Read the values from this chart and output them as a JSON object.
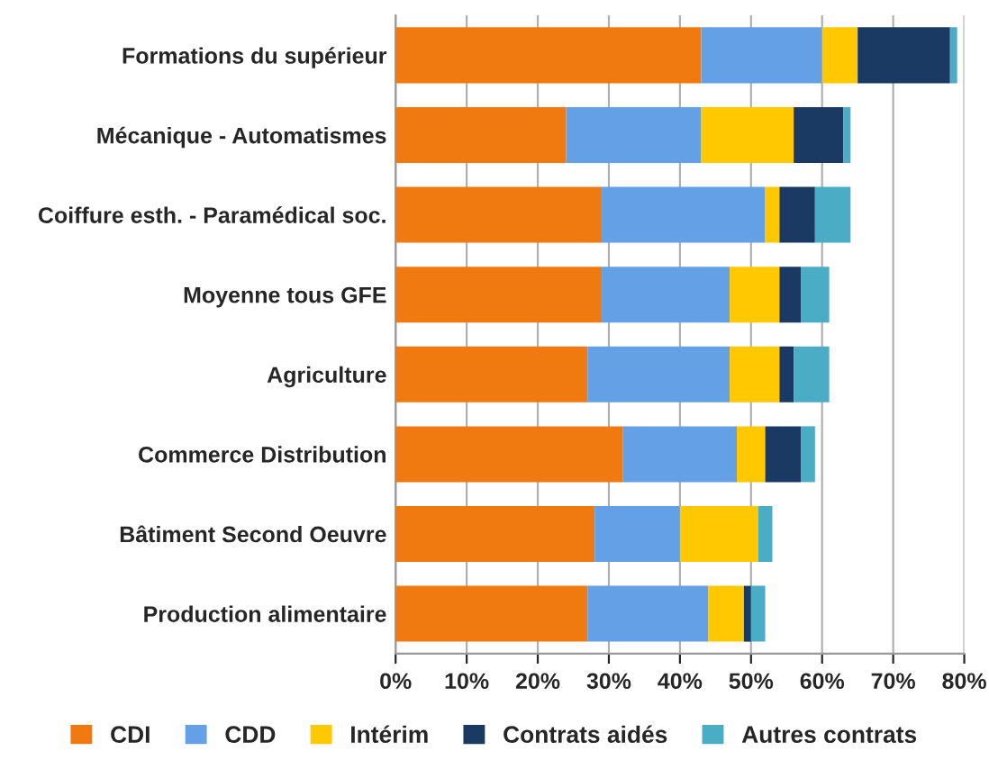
{
  "chart_data": {
    "type": "bar",
    "orientation": "horizontal",
    "stacked": true,
    "categories": [
      "Formations du supérieur",
      "Mécanique - Automatismes",
      "Coiffure esth. - Paramédical soc.",
      "Moyenne tous GFE",
      "Agriculture",
      "Commerce Distribution",
      "Bâtiment Second Oeuvre",
      "Production alimentaire"
    ],
    "series": [
      {
        "name": "CDI",
        "color": "#f07a10",
        "values": [
          43,
          24,
          29,
          29,
          27,
          32,
          28,
          27
        ]
      },
      {
        "name": "CDD",
        "color": "#64a0e6",
        "values": [
          17,
          19,
          23,
          18,
          20,
          16,
          12,
          17
        ]
      },
      {
        "name": "Intérim",
        "color": "#ffc800",
        "values": [
          5,
          13,
          2,
          7,
          7,
          4,
          11,
          5
        ]
      },
      {
        "name": "Contrats aidés",
        "color": "#1a3a64",
        "values": [
          13,
          7,
          5,
          3,
          2,
          5,
          null,
          1
        ]
      },
      {
        "name": "Autres contrats",
        "color": "#4bacc6",
        "values": [
          1,
          1,
          5,
          4,
          5,
          2,
          2,
          2
        ]
      }
    ],
    "xlim": [
      0,
      80
    ],
    "xticks": [
      {
        "value": 0,
        "label": "0%"
      },
      {
        "value": 10,
        "label": "10%"
      },
      {
        "value": 20,
        "label": "20%"
      },
      {
        "value": 30,
        "label": "30%"
      },
      {
        "value": 40,
        "label": "40%"
      },
      {
        "value": 50,
        "label": "50%"
      },
      {
        "value": 60,
        "label": "60%"
      },
      {
        "value": 70,
        "label": "70%"
      },
      {
        "value": 80,
        "label": "80%"
      }
    ],
    "grid": "x",
    "legend": "bottom"
  }
}
